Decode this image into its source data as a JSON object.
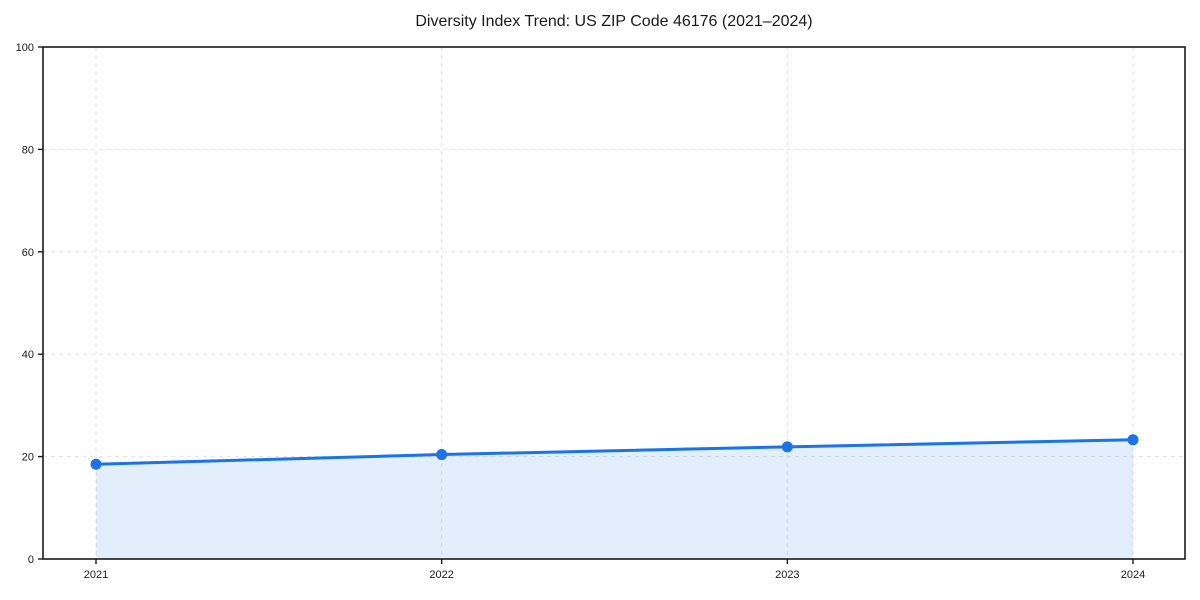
{
  "chart_data": {
    "type": "line",
    "title": "Diversity Index Trend: US ZIP Code 46176 (2021–2024)",
    "categories": [
      "2021",
      "2022",
      "2023",
      "2024"
    ],
    "values": [
      18.5,
      20.4,
      21.9,
      23.3
    ],
    "series_name": "Diversity Index",
    "xlabel": "",
    "ylabel": "",
    "ylim": [
      0,
      100
    ],
    "yticks": [
      0,
      20,
      40,
      60,
      80,
      100
    ],
    "grid": "dashed, both axes",
    "legend": "none",
    "area_fill": true,
    "colors": {
      "line": "#1a73e8",
      "marker": "#1a73e8",
      "area_fill": "rgba(26,115,232,0.12)",
      "gridline": "#e2e2e2",
      "spine": "#1a1a1a",
      "tick_text": "#1a1a1a",
      "background": "#ffffff"
    }
  }
}
